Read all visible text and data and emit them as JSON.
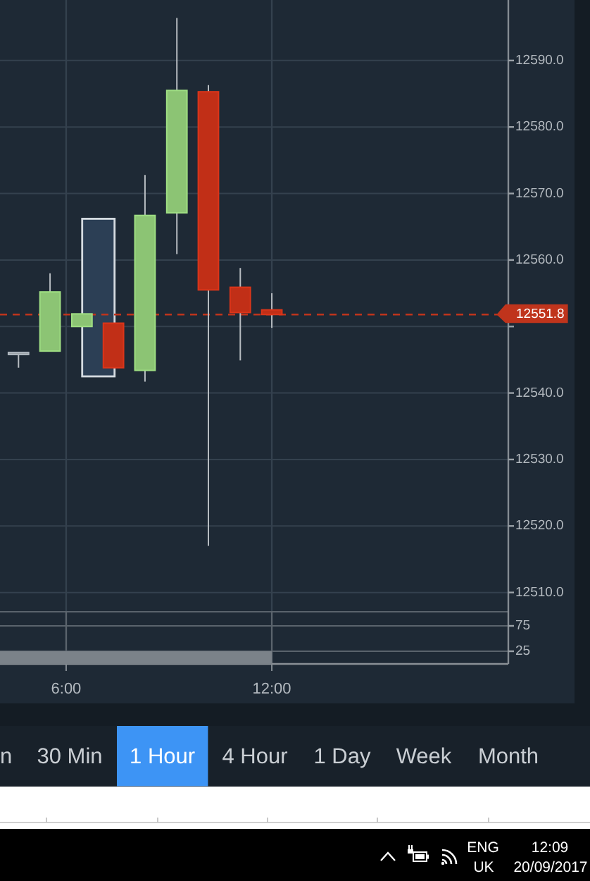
{
  "chart_data": [
    {
      "type": "candlestick",
      "x": [
        4.61,
        5.53,
        6.46,
        7.38,
        8.3,
        9.23,
        10.15,
        11.08,
        12
      ],
      "ohlc": [
        [
          12546.1,
          12546.1,
          12543.8,
          12546.1
        ],
        [
          12546.3,
          12558.0,
          12546.3,
          12555.2
        ],
        [
          12550.0,
          12551.9,
          12550.0,
          12551.9
        ],
        [
          12550.5,
          12550.5,
          12543.8,
          12543.8
        ],
        [
          12543.4,
          12572.8,
          12541.7,
          12566.7
        ],
        [
          12567.1,
          12596.4,
          12560.9,
          12585.5
        ],
        [
          12585.3,
          12586.3,
          12517.0,
          12555.5
        ],
        [
          12555.9,
          12558.8,
          12544.9,
          12552.1
        ],
        [
          12552.5,
          12555.0,
          12549.8,
          12551.8
        ]
      ],
      "colors": [
        "#9aa1a8",
        "#8cc474",
        "#8cc474",
        "#c12f17",
        "#8cc474",
        "#8cc474",
        "#c12f17",
        "#c12f17",
        "#c12f17"
      ],
      "series": [
        {
          "type": "bar",
          "x": [
            6.94
          ],
          "base": [
            12542.5
          ],
          "values": [
            23.7
          ],
          "color": "#2c3f55"
        }
      ],
      "xlim": [
        4.07,
        18.9
      ],
      "ylim": [
        12507.1,
        12599.1
      ],
      "yticks": [
        {
          "value": 12510,
          "label": "12510.0"
        },
        {
          "value": 12520,
          "label": "12520.0"
        },
        {
          "value": 12530,
          "label": "12530.0"
        },
        {
          "value": 12540,
          "label": "12540.0"
        },
        {
          "value": 12550,
          "label": null
        },
        {
          "value": 12560,
          "label": "12560.0"
        },
        {
          "value": 12570,
          "label": "12570.0"
        },
        {
          "value": 12580,
          "label": "12580.0"
        },
        {
          "value": 12590,
          "label": "12590.0"
        }
      ],
      "grid": "y",
      "tick_labels": "y",
      "ref_lines": [
        {
          "axis": "y",
          "value": 12551.8,
          "label": "12551.8",
          "color": "#c0341c",
          "line_style": "dashed"
        }
      ]
    },
    {
      "type": "area",
      "x": [
        4.07,
        12
      ],
      "values": [
        25,
        25
      ],
      "color": "#7b8289",
      "xlim": [
        4.07,
        18.9
      ],
      "ylim": [
        0,
        100
      ],
      "xticks": [
        {
          "value": 6,
          "label": "6:00"
        },
        {
          "value": 12,
          "label": "12:00"
        }
      ],
      "yticks": [
        25,
        75
      ],
      "grid": true
    },
    {
      "type": "other",
      "annotations": [
        "n",
        "30 Min",
        "1 Hour",
        "4 Hour",
        "1 Day",
        "Week",
        "Month"
      ]
    },
    {
      "type": "other",
      "annotations": [
        "ENG",
        "UK",
        "12:09",
        "20/09/2017"
      ]
    }
  ]
}
